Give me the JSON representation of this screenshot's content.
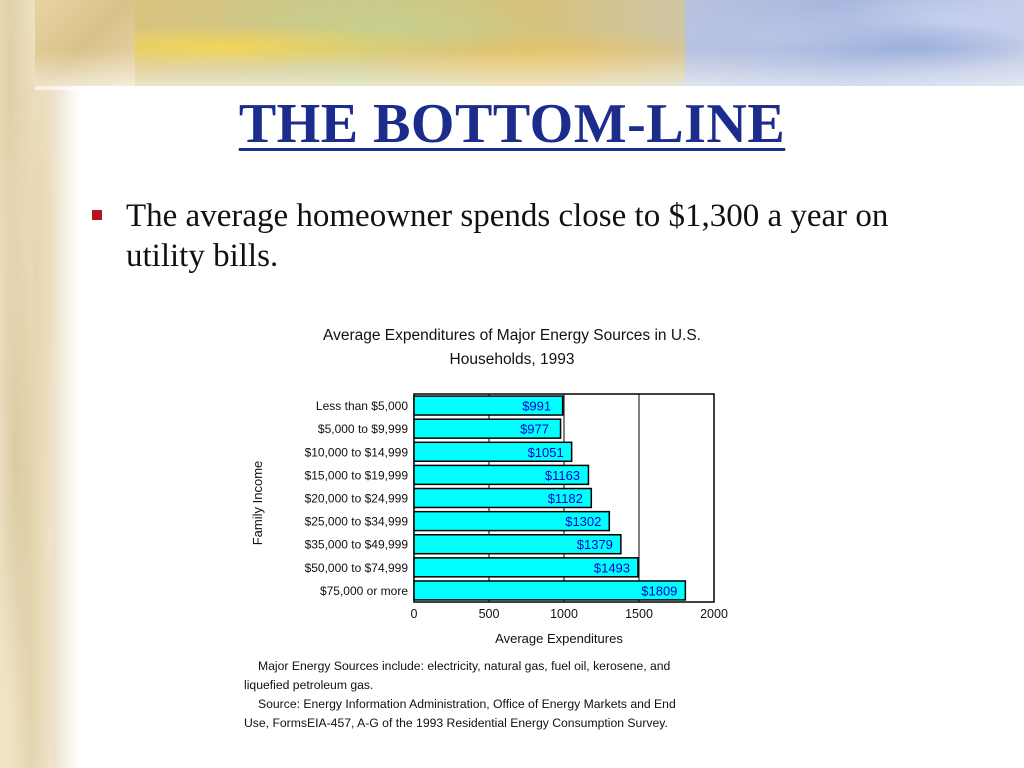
{
  "slide": {
    "title": "THE BOTTOM-LINE",
    "bullet": "The average homeowner spends close to $1,300 a year on utility bills."
  },
  "colors": {
    "title": "#1c2c8c",
    "bullet_marker": "#b3141d",
    "bar_fill": "#00ffff",
    "bar_label": "#0000cc"
  },
  "chart_data": {
    "type": "bar",
    "orientation": "horizontal",
    "title": "Average Expenditures of Major Energy Sources in U.S. Households, 1993",
    "title_lines": [
      "Average Expenditures of Major Energy Sources in U.S.",
      "Households, 1993"
    ],
    "xlabel": "Average Expenditures",
    "ylabel": "Family Income",
    "xlim": [
      0,
      2000
    ],
    "xticks": [
      "0",
      "500",
      "1000",
      "1500",
      "2000"
    ],
    "grid": "vertical lines at 500, 1000, 1500",
    "categories": [
      "Less than $5,000",
      "$5,000 to $9,999",
      "$10,000 to $14,999",
      "$15,000 to $19,999",
      "$20,000 to $24,999",
      "$25,000 to $34,999",
      "$35,000 to $49,999",
      "$50,000 to $74,999",
      "$75,000 or more"
    ],
    "values": [
      991,
      977,
      1051,
      1163,
      1182,
      1302,
      1379,
      1493,
      1809
    ],
    "data_labels": [
      "$991",
      "$977",
      "$1051",
      "$1163",
      "$1182",
      "$1302",
      "$1379",
      "$1493",
      "$1809"
    ],
    "notes": [
      "Major Energy Sources include: electricity, natural gas, fuel oil, kerosene, and",
      "liquefied petroleum gas.",
      "Source: Energy Information Administration, Office of Energy Markets and End",
      "Use, FormsEIA-457, A-G of the 1993 Residential Energy Consumption Survey."
    ]
  }
}
